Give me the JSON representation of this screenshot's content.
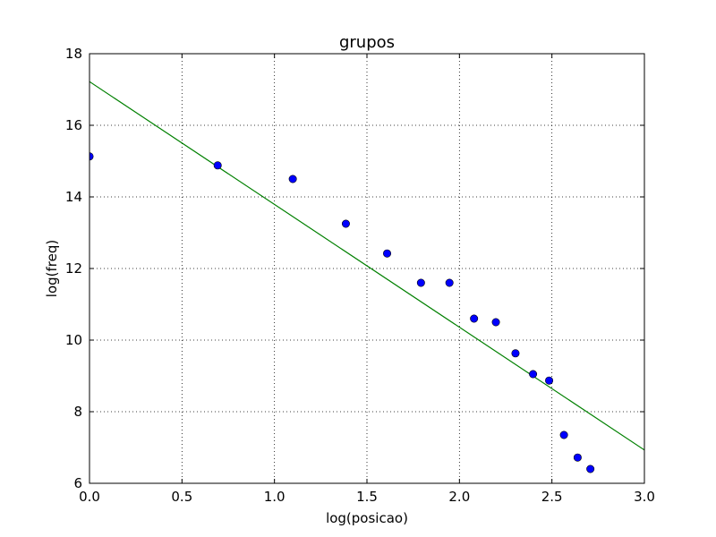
{
  "chart_data": {
    "type": "scatter",
    "title": "grupos",
    "xlabel": "log(posicao)",
    "ylabel": "log(freq)",
    "xlim": [
      0.0,
      3.0
    ],
    "ylim": [
      6,
      18
    ],
    "xticks": [
      "0.0",
      "0.5",
      "1.0",
      "1.5",
      "2.0",
      "2.5",
      "3.0"
    ],
    "yticks": [
      "6",
      "8",
      "10",
      "12",
      "14",
      "16",
      "18"
    ],
    "grid": true,
    "series": [
      {
        "type": "scatter",
        "color": "#0000ff",
        "x": [
          0.0,
          0.693,
          1.099,
          1.386,
          1.609,
          1.792,
          1.946,
          2.079,
          2.197,
          2.303,
          2.398,
          2.485,
          2.565,
          2.639,
          2.708
        ],
        "y": [
          15.13,
          14.88,
          14.5,
          13.25,
          12.42,
          11.6,
          11.6,
          10.6,
          10.5,
          9.63,
          9.05,
          8.87,
          7.35,
          6.72,
          6.4
        ]
      },
      {
        "type": "line",
        "color": "#008000",
        "x": [
          0.0,
          3.0
        ],
        "y": [
          17.22,
          6.93
        ]
      }
    ]
  }
}
